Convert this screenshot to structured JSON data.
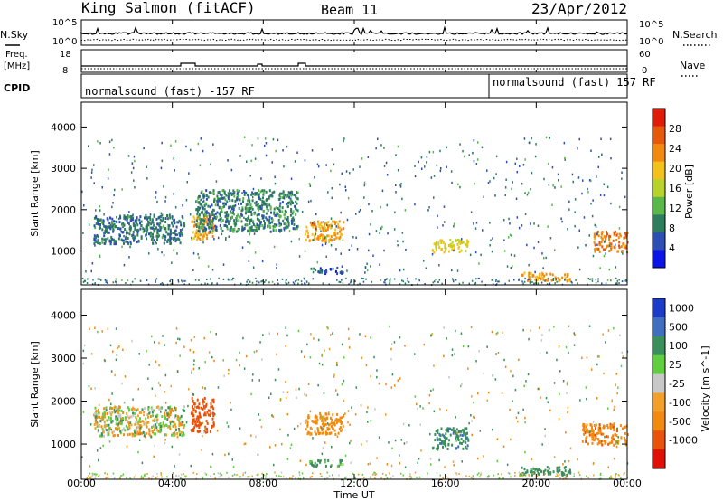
{
  "header": {
    "station": "King Salmon (fitACF)",
    "beam": "Beam 11",
    "date": "23/Apr/2012"
  },
  "left_labels": {
    "nsky": "N.Sky",
    "freq_line1": "Freq.",
    "freq_line2": "[MHz]",
    "cpid": "CPID"
  },
  "right_labels": {
    "nsearch": "N.Search",
    "nave": "Nave"
  },
  "cpid": {
    "mode_1": "normalsound (fast) -157 RF",
    "mode_2": "normalsound (fast) 157 RF"
  },
  "x_axis": {
    "label": "Time UT",
    "ticks": [
      "00:00",
      "04:00",
      "08:00",
      "12:00",
      "16:00",
      "20:00",
      "00:00"
    ]
  },
  "noise_axis": {
    "left_ticks": [
      "10^5",
      "10^0"
    ],
    "right_ticks": [
      "10^5",
      "10^0"
    ]
  },
  "freq_axis": {
    "left_ticks": [
      "18",
      "8"
    ],
    "right_ticks": [
      "60",
      "0"
    ]
  },
  "colors": {
    "power": [
      "#0a14e6",
      "#2d4fb4",
      "#2f7d5f",
      "#5ab84a",
      "#b8d22a",
      "#f2c21a",
      "#f28a10",
      "#e6580a",
      "#e01c08"
    ],
    "velocity": [
      "#1a3cc8",
      "#3f6fbe",
      "#3a8f5a",
      "#5fcf3f",
      "#c8c8c8",
      "#f2a02a",
      "#f28a10",
      "#e8520a",
      "#e01006"
    ]
  },
  "chart_data": [
    {
      "type": "heatmap",
      "title": "",
      "xlabel": "Time UT",
      "ylabel": "Slant Range [km]",
      "xlim": [
        "00:00",
        "24:00"
      ],
      "ylim": [
        180,
        4600
      ],
      "y_ticks": [
        1000,
        2000,
        3000,
        4000
      ],
      "colorbar": {
        "label": "Power [dB]",
        "range": [
          0,
          32
        ],
        "ticks": [
          4,
          8,
          12,
          16,
          20,
          24,
          28
        ]
      },
      "regions": [
        {
          "t": [
            0.5,
            4.5
          ],
          "r": [
            1200,
            1900
          ],
          "value": 8
        },
        {
          "t": [
            4.8,
            5.8
          ],
          "r": [
            1300,
            1900
          ],
          "value": 22
        },
        {
          "t": [
            5.0,
            9.5
          ],
          "r": [
            1500,
            2500
          ],
          "value": 9
        },
        {
          "t": [
            9.8,
            11.5
          ],
          "r": [
            1250,
            1750
          ],
          "value": 22
        },
        {
          "t": [
            10.0,
            11.5
          ],
          "r": [
            480,
            620
          ],
          "value": 6
        },
        {
          "t": [
            15.4,
            17.0
          ],
          "r": [
            1000,
            1300
          ],
          "value": 18
        },
        {
          "t": [
            19.2,
            21.5
          ],
          "r": [
            300,
            500
          ],
          "value": 22
        },
        {
          "t": [
            22.5,
            24.0
          ],
          "r": [
            1000,
            1500
          ],
          "value": 24
        }
      ]
    },
    {
      "type": "heatmap",
      "title": "",
      "xlabel": "Time UT",
      "ylabel": "Slant Range [km]",
      "xlim": [
        "00:00",
        "24:00"
      ],
      "ylim": [
        180,
        4600
      ],
      "y_ticks": [
        1000,
        2000,
        3000,
        4000
      ],
      "colorbar": {
        "label": "Velocity [m s^-1]",
        "ticks": [
          "1000",
          "500",
          "100",
          "25",
          "-25",
          "-100",
          "-500",
          "-1000"
        ]
      },
      "regions": [
        {
          "t": [
            0.5,
            4.5
          ],
          "r": [
            1200,
            1900
          ],
          "value": 0
        },
        {
          "t": [
            4.8,
            5.8
          ],
          "r": [
            1300,
            2100
          ],
          "value": -800
        },
        {
          "t": [
            9.8,
            11.5
          ],
          "r": [
            1250,
            1750
          ],
          "value": -300
        },
        {
          "t": [
            10.0,
            11.5
          ],
          "r": [
            500,
            650
          ],
          "value": 200
        },
        {
          "t": [
            15.4,
            17.0
          ],
          "r": [
            900,
            1400
          ],
          "value": 400
        },
        {
          "t": [
            19.2,
            21.5
          ],
          "r": [
            300,
            500
          ],
          "value": 300
        },
        {
          "t": [
            22.0,
            24.0
          ],
          "r": [
            1000,
            1500
          ],
          "value": -400
        }
      ]
    }
  ]
}
